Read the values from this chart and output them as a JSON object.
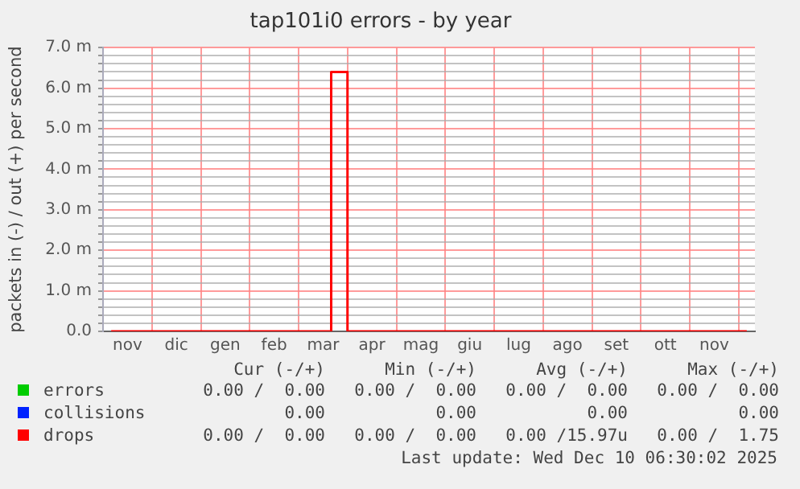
{
  "chart_data": {
    "type": "step",
    "title": "tap101i0 errors - by year",
    "ylabel": "packets in (-) / out (+) per second",
    "categories": [
      null,
      "nov",
      null,
      null,
      "dic",
      null,
      null,
      "gen",
      null,
      null,
      "feb",
      null,
      null,
      "mar",
      null,
      null,
      "apr",
      null,
      null,
      "mag",
      null,
      null,
      "giu",
      null,
      null,
      "lug",
      null,
      null,
      "ago",
      null,
      null,
      "set",
      null,
      null,
      "ott",
      null,
      null,
      "nov",
      null,
      null
    ],
    "series": [
      {
        "name": "errors",
        "color": "#00cc00",
        "values": [
          null,
          null,
          null,
          null,
          null,
          null,
          null,
          null,
          null,
          null,
          null,
          null,
          null,
          null,
          null,
          null,
          null,
          null,
          null,
          null,
          null,
          null,
          null,
          null,
          null,
          null,
          null,
          null,
          null,
          null,
          null,
          null,
          null,
          null,
          null,
          null,
          null,
          null,
          null,
          null
        ]
      },
      {
        "name": "collisions",
        "color": "#0022ff",
        "values": [
          null,
          null,
          null,
          null,
          null,
          null,
          null,
          null,
          null,
          null,
          null,
          null,
          null,
          null,
          null,
          null,
          null,
          null,
          null,
          null,
          null,
          null,
          null,
          null,
          null,
          null,
          null,
          null,
          null,
          null,
          null,
          null,
          null,
          null,
          null,
          null,
          null,
          null,
          null,
          null
        ]
      },
      {
        "name": "drops",
        "color": "#ff0000",
        "values": [
          0,
          0,
          0,
          0,
          0,
          0,
          0,
          0,
          0,
          0,
          0,
          0,
          0,
          0,
          6.4,
          0,
          0,
          0,
          0,
          0,
          0,
          0,
          0,
          0,
          0,
          0,
          0,
          0,
          0,
          0,
          0,
          0,
          0,
          0,
          0,
          0,
          0,
          0,
          0,
          0
        ]
      }
    ],
    "ylim": [
      0,
      7
    ],
    "yticks": [
      {
        "value": 0,
        "label": "0.0"
      },
      {
        "value": 0.2,
        "label": null
      },
      {
        "value": 0.4,
        "label": null
      },
      {
        "value": 0.6,
        "label": null
      },
      {
        "value": 0.8,
        "label": null
      },
      {
        "value": 1,
        "label": "1.0 m"
      },
      {
        "value": 1.2,
        "label": null
      },
      {
        "value": 1.4,
        "label": null
      },
      {
        "value": 1.6,
        "label": null
      },
      {
        "value": 1.8,
        "label": null
      },
      {
        "value": 2,
        "label": "2.0 m"
      },
      {
        "value": 2.2,
        "label": null
      },
      {
        "value": 2.4,
        "label": null
      },
      {
        "value": 2.6,
        "label": null
      },
      {
        "value": 2.8,
        "label": null
      },
      {
        "value": 3,
        "label": "3.0 m"
      },
      {
        "value": 3.2,
        "label": null
      },
      {
        "value": 3.4,
        "label": null
      },
      {
        "value": 3.6,
        "label": null
      },
      {
        "value": 3.8,
        "label": null
      },
      {
        "value": 4,
        "label": "4.0 m"
      },
      {
        "value": 4.2,
        "label": null
      },
      {
        "value": 4.4,
        "label": null
      },
      {
        "value": 4.6,
        "label": null
      },
      {
        "value": 4.8,
        "label": null
      },
      {
        "value": 5,
        "label": "5.0 m"
      },
      {
        "value": 5.2,
        "label": null
      },
      {
        "value": 5.4,
        "label": null
      },
      {
        "value": 5.6,
        "label": null
      },
      {
        "value": 5.8,
        "label": null
      },
      {
        "value": 6,
        "label": "6.0 m"
      },
      {
        "value": 6.2,
        "label": null
      },
      {
        "value": 6.4,
        "label": null
      },
      {
        "value": 6.6,
        "label": null
      },
      {
        "value": 6.8,
        "label": null
      },
      {
        "value": 7,
        "label": "7.0 m"
      }
    ],
    "grid": true,
    "legend": "bottom",
    "marker": "none",
    "line_style": "solid",
    "annotations": [
      "Cur (-/+)",
      "Min (-/+)",
      "Avg (-/+)",
      "Max (-/+)",
      "0.00 /  0.00",
      "0.00 /  0.00",
      "0.00 /  0.00",
      "0.00 /  0.00",
      "0.00",
      "0.00",
      "0.00",
      "0.00",
      "0.00 /  0.00",
      "0.00 /  0.00",
      "0.00 /15.97u",
      "0.00 /  1.75",
      "Last update: Wed Dec 10 06:30:02 2025"
    ]
  }
}
